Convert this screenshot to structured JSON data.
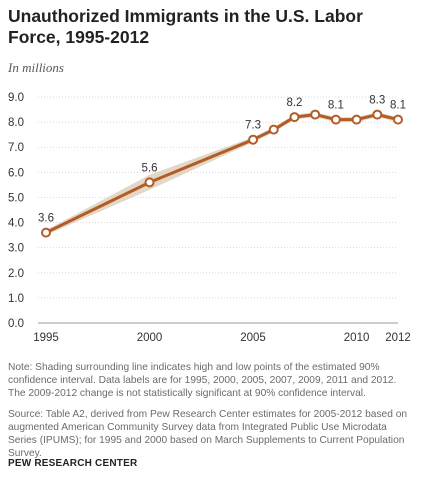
{
  "header": {
    "title": "Unauthorized Immigrants in the U.S. Labor Force, 1995-2012",
    "subtitle": "In millions"
  },
  "footer": {
    "note": "Note: Shading surrounding line indicates high and low points of the estimated 90% confidence interval. Data labels are for 1995, 2000, 2005, 2007, 2009, 2011 and 2012. The 2009-2012  change is not statistically significant at 90% confidence interval.",
    "source": "Source: Table A2, derived from Pew Research Center estimates for 2005-2012 based on augmented American Community Survey data from Integrated Public Use Microdata Series (IPUMS); for 1995 and 2000 based on March Supplements to Current Population Survey.",
    "credit": "PEW RESEARCH CENTER"
  },
  "colors": {
    "line": "#b25c27",
    "marker_fill": "#ffffff",
    "ci_band": "#e3d7c6",
    "grid": "#d9d9d9",
    "text": "#222222"
  },
  "chart_data": {
    "type": "line",
    "title": "Unauthorized Immigrants in the U.S. Labor Force, 1995-2012",
    "subtitle": "In millions",
    "xlabel": "",
    "ylabel": "",
    "x": [
      1995,
      2000,
      2005,
      2006,
      2007,
      2008,
      2009,
      2010,
      2011,
      2012
    ],
    "series": [
      {
        "values": [
          3.6,
          5.6,
          7.3,
          7.7,
          8.2,
          8.3,
          8.1,
          8.1,
          8.3,
          8.1
        ],
        "ci_low": [
          3.5,
          5.3,
          7.2,
          7.6,
          8.1,
          8.2,
          8.0,
          8.0,
          8.2,
          8.0
        ],
        "ci_high": [
          3.7,
          5.9,
          7.4,
          7.8,
          8.3,
          8.4,
          8.2,
          8.2,
          8.4,
          8.2
        ]
      }
    ],
    "data_labels": [
      {
        "x": 1995,
        "text": "3.6"
      },
      {
        "x": 2000,
        "text": "5.6"
      },
      {
        "x": 2005,
        "text": "7.3"
      },
      {
        "x": 2007,
        "text": "8.2"
      },
      {
        "x": 2009,
        "text": "8.1"
      },
      {
        "x": 2011,
        "text": "8.3"
      },
      {
        "x": 2012,
        "text": "8.1"
      }
    ],
    "xticks": [
      1995,
      2000,
      2005,
      2010,
      2012
    ],
    "yticks": [
      "0.0",
      "1.0",
      "2.0",
      "3.0",
      "4.0",
      "5.0",
      "6.0",
      "7.0",
      "8.0",
      "9.0"
    ],
    "xlim": [
      1995,
      2012
    ],
    "ylim": [
      0,
      9
    ],
    "grid": true,
    "legend": "none"
  }
}
